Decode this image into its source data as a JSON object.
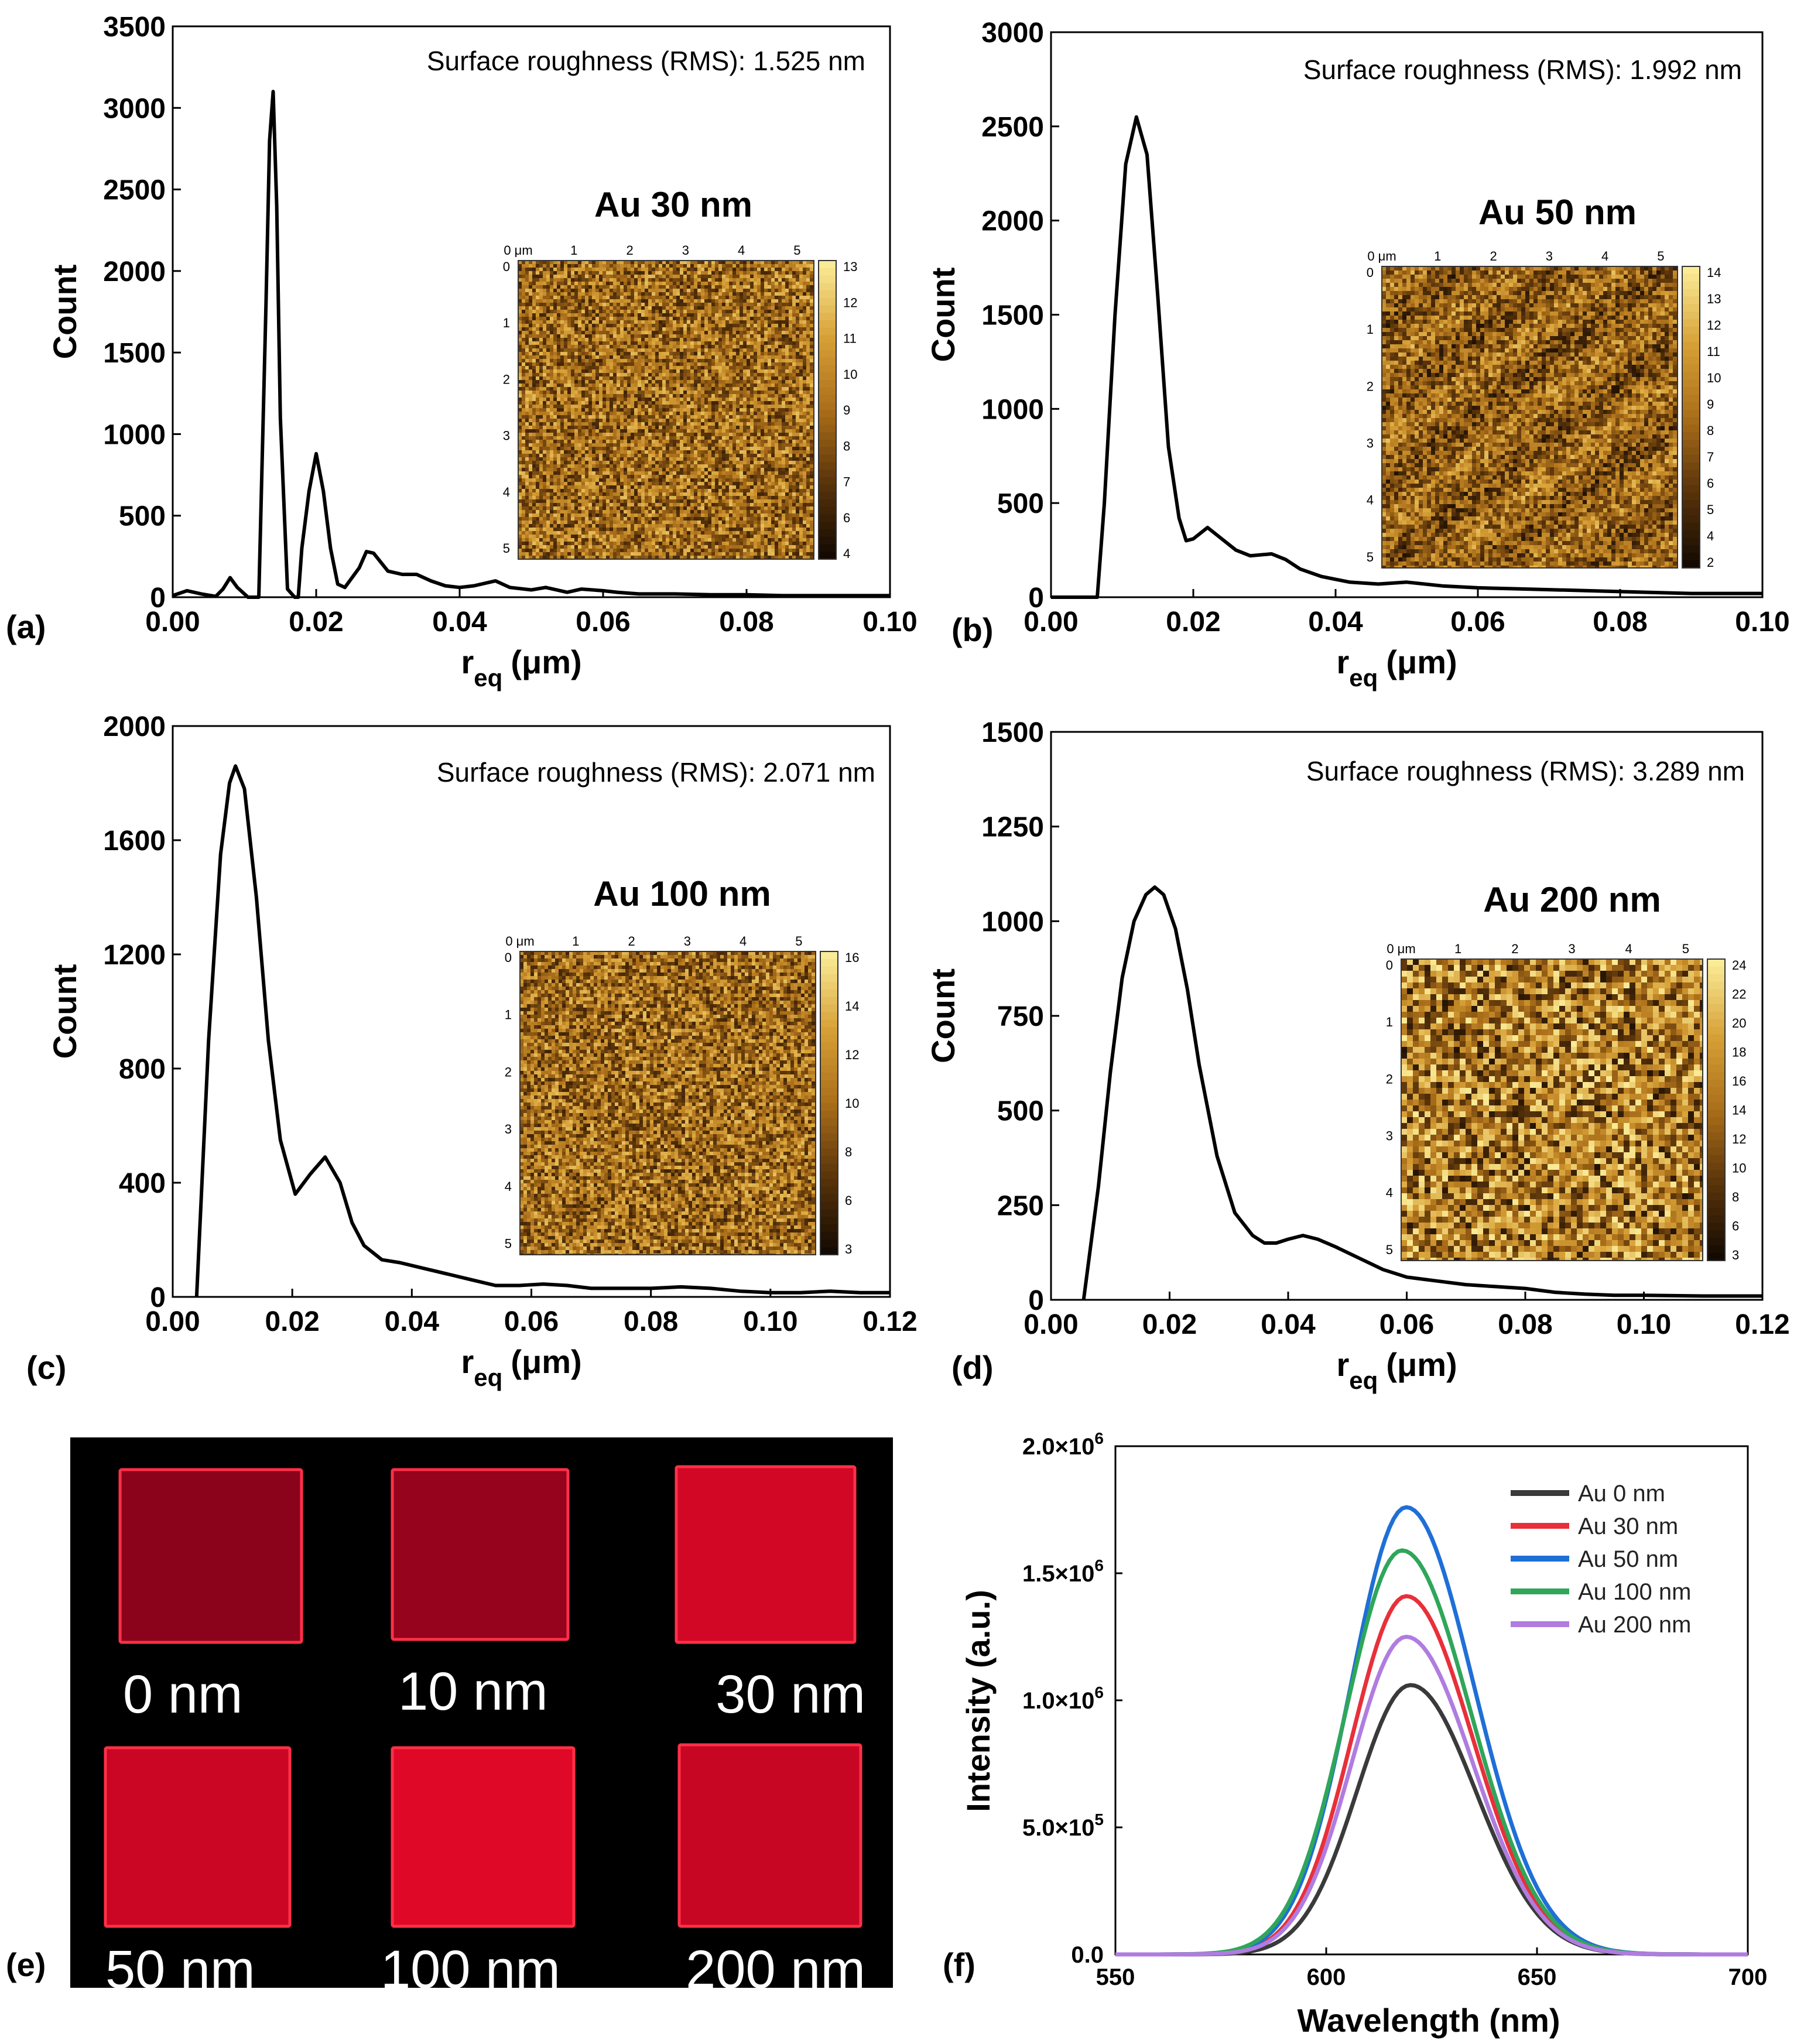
{
  "colors": {
    "black": "#000000",
    "au0": "#3a3a3a",
    "au30": "#e8303a",
    "au50": "#1f6fd6",
    "au100": "#2fa65a",
    "au200": "#b07ce0",
    "sample_red": "#c8001a",
    "afm_dark": "#3b2205",
    "afm_mid": "#b07a1e",
    "afm_light": "#fff3a0"
  },
  "panels": [
    {
      "id": "a",
      "label": "(a)",
      "rms_text": "Surface roughness (RMS): 1.525 nm",
      "inset": {
        "title": "Au 30 nm",
        "x_ticks": [
          "0 μm",
          "1",
          "2",
          "3",
          "4",
          "5"
        ],
        "y_ticks": [
          "0",
          "1",
          "2",
          "3",
          "4",
          "5"
        ],
        "colorbar_ticks": [
          "13",
          "12",
          "11",
          "10",
          "9",
          "8",
          "7",
          "6",
          "4"
        ],
        "texture": "fine"
      },
      "chart_data": {
        "type": "line",
        "xlabel": "r_eq (μm)",
        "xlabel_main": "r",
        "xlabel_sub": "eq",
        "xlabel_unit": "(μm)",
        "ylabel": "Count",
        "xlim": [
          0,
          0.1
        ],
        "ylim": [
          0,
          3500
        ],
        "x_ticks": [
          "0.00",
          "0.02",
          "0.04",
          "0.06",
          "0.08",
          "0.10"
        ],
        "y_ticks": [
          "0",
          "500",
          "1000",
          "1500",
          "2000",
          "2500",
          "3000",
          "3500"
        ],
        "x_tick_values": [
          0,
          0.02,
          0.04,
          0.06,
          0.08,
          0.1
        ],
        "y_tick_values": [
          0,
          500,
          1000,
          1500,
          2000,
          2500,
          3000,
          3500
        ],
        "series": [
          {
            "name": "Au 30 nm",
            "x": [
              0.0,
              0.002,
              0.004,
              0.006,
              0.007,
              0.008,
              0.009,
              0.0105,
              0.012,
              0.013,
              0.0135,
              0.014,
              0.0145,
              0.015,
              0.016,
              0.017,
              0.0175,
              0.018,
              0.019,
              0.02,
              0.021,
              0.022,
              0.023,
              0.024,
              0.026,
              0.027,
              0.028,
              0.03,
              0.032,
              0.034,
              0.036,
              0.038,
              0.04,
              0.042,
              0.045,
              0.047,
              0.05,
              0.052,
              0.055,
              0.057,
              0.06,
              0.062,
              0.065,
              0.07,
              0.075,
              0.08,
              0.085,
              0.09,
              0.095,
              0.1
            ],
            "y": [
              10,
              40,
              20,
              5,
              50,
              120,
              60,
              0,
              0,
              1800,
              2800,
              3100,
              2400,
              1100,
              50,
              0,
              0,
              300,
              650,
              880,
              650,
              300,
              80,
              60,
              180,
              280,
              270,
              160,
              140,
              140,
              100,
              70,
              60,
              70,
              100,
              60,
              45,
              60,
              30,
              50,
              40,
              30,
              20,
              20,
              15,
              15,
              10,
              10,
              10,
              10
            ]
          }
        ]
      }
    },
    {
      "id": "b",
      "label": "(b)",
      "rms_text": "Surface roughness (RMS): 1.992 nm",
      "inset": {
        "title": "Au 50 nm",
        "x_ticks": [
          "0 μm",
          "1",
          "2",
          "3",
          "4",
          "5"
        ],
        "y_ticks": [
          "0",
          "1",
          "2",
          "3",
          "4",
          "5"
        ],
        "colorbar_ticks": [
          "14",
          "13",
          "12",
          "11",
          "10",
          "9",
          "8",
          "7",
          "6",
          "5",
          "4",
          "2"
        ],
        "texture": "streaky"
      },
      "chart_data": {
        "type": "line",
        "xlabel": "r_eq (μm)",
        "xlabel_main": "r",
        "xlabel_sub": "eq",
        "xlabel_unit": "(μm)",
        "ylabel": "Count",
        "xlim": [
          0,
          0.1
        ],
        "ylim": [
          0,
          3000
        ],
        "x_ticks": [
          "0.00",
          "0.02",
          "0.04",
          "0.06",
          "0.08",
          "0.10"
        ],
        "y_ticks": [
          "0",
          "500",
          "1000",
          "1500",
          "2000",
          "2500",
          "3000"
        ],
        "x_tick_values": [
          0,
          0.02,
          0.04,
          0.06,
          0.08,
          0.1
        ],
        "y_tick_values": [
          0,
          500,
          1000,
          1500,
          2000,
          2500,
          3000
        ],
        "series": [
          {
            "name": "Au 50 nm",
            "x": [
              0.0,
              0.003,
              0.0065,
              0.0075,
              0.009,
              0.0105,
              0.012,
              0.0135,
              0.015,
              0.0165,
              0.018,
              0.019,
              0.02,
              0.022,
              0.024,
              0.026,
              0.028,
              0.031,
              0.033,
              0.035,
              0.038,
              0.042,
              0.046,
              0.05,
              0.055,
              0.06,
              0.065,
              0.07,
              0.08,
              0.09,
              0.1
            ],
            "y": [
              0,
              0,
              0,
              500,
              1500,
              2300,
              2550,
              2350,
              1600,
              800,
              420,
              300,
              310,
              370,
              310,
              250,
              220,
              230,
              200,
              150,
              110,
              80,
              70,
              80,
              60,
              50,
              45,
              40,
              30,
              20,
              20
            ]
          }
        ]
      }
    },
    {
      "id": "c",
      "label": "(c)",
      "rms_text": "Surface roughness (RMS): 2.071 nm",
      "inset": {
        "title": "Au 100 nm",
        "x_ticks": [
          "0 μm",
          "1",
          "2",
          "3",
          "4",
          "5"
        ],
        "y_ticks": [
          "0",
          "1",
          "2",
          "3",
          "4",
          "5"
        ],
        "colorbar_ticks": [
          "16",
          "14",
          "12",
          "10",
          "8",
          "6",
          "3"
        ],
        "texture": "fine"
      },
      "chart_data": {
        "type": "line",
        "xlabel": "r_eq (μm)",
        "xlabel_main": "r",
        "xlabel_sub": "eq",
        "xlabel_unit": "(μm)",
        "ylabel": "Count",
        "xlim": [
          0,
          0.12
        ],
        "ylim": [
          0,
          2000
        ],
        "x_ticks": [
          "0.00",
          "0.02",
          "0.04",
          "0.06",
          "0.08",
          "0.10",
          "0.12"
        ],
        "y_ticks": [
          "0",
          "400",
          "800",
          "1200",
          "1600",
          "2000"
        ],
        "x_tick_values": [
          0,
          0.02,
          0.04,
          0.06,
          0.08,
          0.1,
          0.12
        ],
        "y_tick_values": [
          0,
          400,
          800,
          1200,
          1600,
          2000
        ],
        "series": [
          {
            "name": "Au 100 nm",
            "x": [
              0.004,
              0.006,
              0.008,
              0.0095,
              0.0105,
              0.012,
              0.014,
              0.016,
              0.018,
              0.0205,
              0.023,
              0.0255,
              0.028,
              0.03,
              0.032,
              0.035,
              0.038,
              0.042,
              0.046,
              0.05,
              0.054,
              0.058,
              0.062,
              0.066,
              0.07,
              0.075,
              0.08,
              0.085,
              0.09,
              0.095,
              0.1,
              0.105,
              0.11,
              0.115,
              0.12
            ],
            "y": [
              0,
              900,
              1550,
              1800,
              1860,
              1780,
              1400,
              900,
              550,
              360,
              430,
              490,
              400,
              260,
              180,
              130,
              120,
              100,
              80,
              60,
              40,
              40,
              45,
              40,
              30,
              30,
              30,
              35,
              30,
              20,
              15,
              15,
              20,
              15,
              15
            ]
          }
        ]
      }
    },
    {
      "id": "d",
      "label": "(d)",
      "rms_text": "Surface roughness (RMS): 3.289 nm",
      "inset": {
        "title": "Au 200 nm",
        "x_ticks": [
          "0 μm",
          "1",
          "2",
          "3",
          "4",
          "5"
        ],
        "y_ticks": [
          "0",
          "1",
          "2",
          "3",
          "4",
          "5"
        ],
        "colorbar_ticks": [
          "24",
          "22",
          "20",
          "18",
          "16",
          "14",
          "12",
          "10",
          "8",
          "6",
          "3"
        ],
        "texture": "coarse"
      },
      "chart_data": {
        "type": "line",
        "xlabel": "r_eq (μm)",
        "xlabel_main": "r",
        "xlabel_sub": "eq",
        "xlabel_unit": "(μm)",
        "ylabel": "Count",
        "xlim": [
          0,
          0.12
        ],
        "ylim": [
          0,
          1500
        ],
        "x_ticks": [
          "0.00",
          "0.02",
          "0.04",
          "0.06",
          "0.08",
          "0.10",
          "0.12"
        ],
        "y_ticks": [
          "0",
          "250",
          "500",
          "750",
          "1000",
          "1250",
          "1500"
        ],
        "x_tick_values": [
          0,
          0.02,
          0.04,
          0.06,
          0.08,
          0.1,
          0.12
        ],
        "y_tick_values": [
          0,
          250,
          500,
          750,
          1000,
          1250,
          1500
        ],
        "series": [
          {
            "name": "Au 200 nm",
            "x": [
              0.0055,
              0.008,
              0.01,
              0.012,
              0.014,
              0.016,
              0.0175,
              0.019,
              0.021,
              0.023,
              0.025,
              0.028,
              0.031,
              0.034,
              0.036,
              0.038,
              0.04,
              0.0425,
              0.045,
              0.048,
              0.052,
              0.056,
              0.06,
              0.065,
              0.07,
              0.075,
              0.08,
              0.085,
              0.09,
              0.095,
              0.1,
              0.11,
              0.12
            ],
            "y": [
              0,
              300,
              600,
              850,
              1000,
              1070,
              1090,
              1070,
              980,
              820,
              620,
              380,
              230,
              170,
              150,
              150,
              160,
              170,
              160,
              140,
              110,
              80,
              60,
              50,
              40,
              35,
              30,
              20,
              15,
              12,
              12,
              10,
              10
            ]
          }
        ]
      }
    }
  ],
  "photo_panel": {
    "label": "(e)",
    "samples": [
      {
        "label": "0 nm",
        "brightness": 0.35
      },
      {
        "label": "10 nm",
        "brightness": 0.42
      },
      {
        "label": "30 nm",
        "brightness": 0.85
      },
      {
        "label": "50 nm",
        "brightness": 0.8
      },
      {
        "label": "100 nm",
        "brightness": 0.95
      },
      {
        "label": "200 nm",
        "brightness": 0.78
      }
    ]
  },
  "spectrum_panel": {
    "label": "(f)",
    "chart_data": {
      "type": "line",
      "xlabel": "Wavelength (nm)",
      "ylabel": "Intensity (a.u.)",
      "xlim": [
        550,
        700
      ],
      "ylim": [
        0,
        2000000
      ],
      "x_ticks": [
        "550",
        "600",
        "650",
        "700"
      ],
      "x_tick_values": [
        550,
        600,
        650,
        700
      ],
      "y_tick_mantissas": [
        "0.0",
        "5.0×10",
        "1.0×10",
        "1.5×10",
        "2.0×10"
      ],
      "y_tick_exponents": [
        "",
        "5",
        "6",
        "6",
        "6"
      ],
      "y_tick_values": [
        0,
        500000,
        1000000,
        1500000,
        2000000
      ],
      "legend_position": "top-right",
      "series": [
        {
          "name": "Au 0 nm",
          "color_key": "au0",
          "peak_nm": 620,
          "peak": 1060000,
          "width_nm": 13.8
        },
        {
          "name": "Au 30 nm",
          "color_key": "au30",
          "peak_nm": 619,
          "peak": 1410000,
          "width_nm": 14.0
        },
        {
          "name": "Au 50 nm",
          "color_key": "au50",
          "peak_nm": 619,
          "peak": 1760000,
          "width_nm": 14.2
        },
        {
          "name": "Au 100 nm",
          "color_key": "au100",
          "peak_nm": 618,
          "peak": 1590000,
          "width_nm": 14.4
        },
        {
          "name": "Au 200 nm",
          "color_key": "au200",
          "peak_nm": 619,
          "peak": 1250000,
          "width_nm": 14.0
        }
      ]
    }
  }
}
